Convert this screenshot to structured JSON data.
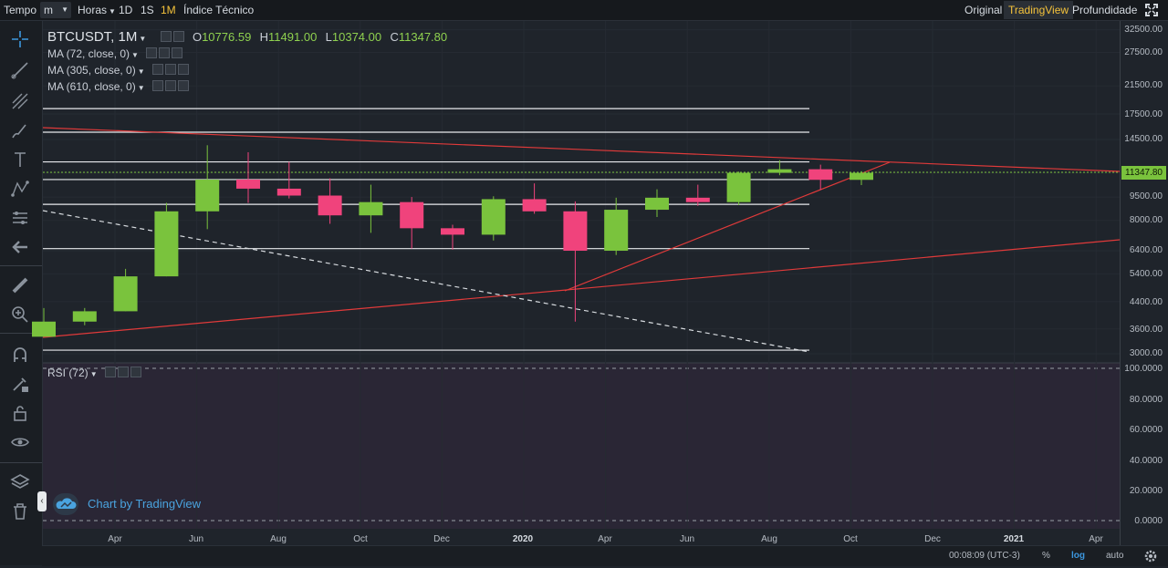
{
  "toolbar": {
    "tempo_label": "Tempo",
    "interval_value": "m",
    "hours_label": "Horas",
    "tf_1d": "1D",
    "tf_1s": "1S",
    "tf_1m": "1M",
    "indicator_label": "Índice Técnico",
    "view_original": "Original",
    "view_tradingview": "TradingView",
    "view_depth": "Profundidade",
    "active_view": "TradingView",
    "active_timeframe": "1M"
  },
  "tools": [
    "crosshair-icon",
    "trend-line-icon",
    "fib-icon",
    "brush-icon",
    "text-icon",
    "pattern-icon",
    "forecast-icon",
    "back-arrow-icon",
    "ruler-icon",
    "zoom-icon",
    "magnet-icon",
    "lock-draw-icon",
    "unlock-icon",
    "eye-icon",
    "layers-icon",
    "trash-icon"
  ],
  "legend": {
    "symbol": "BTCUSDT, 1M",
    "o_label": "O",
    "o_value": "10776.59",
    "h_label": "H",
    "h_value": "11491.00",
    "l_label": "L",
    "l_value": "10374.00",
    "c_label": "C",
    "c_value": "11347.80",
    "ma1": "MA (72, close, 0)",
    "ma2": "MA (305, close, 0)",
    "ma3": "MA (610, close, 0)",
    "rsi": "RSI (72)"
  },
  "price_axis": [
    "32500.00",
    "27500.00",
    "21500.00",
    "17500.00",
    "14500.00",
    "11347.80",
    "9500.00",
    "8000.00",
    "6400.00",
    "5400.00",
    "4400.00",
    "3600.00",
    "3000.00"
  ],
  "last_price": "11347.80",
  "rsi_axis": [
    "100.0000",
    "80.0000",
    "60.0000",
    "40.0000",
    "20.0000",
    "0.0000"
  ],
  "time_axis": [
    "Apr",
    "Jun",
    "Aug",
    "Oct",
    "Dec",
    "2020",
    "Apr",
    "Jun",
    "Aug",
    "Oct",
    "Dec",
    "2021",
    "Apr"
  ],
  "bottom": {
    "clock": "00:08:09 (UTC-3)",
    "percent": "%",
    "log": "log",
    "auto": "auto"
  },
  "watermark": "Chart by TradingView",
  "colors": {
    "up": "#7ac33d",
    "down": "#f0437c",
    "accent": "#f5c33b",
    "link": "#4aa3df"
  },
  "chart_data": {
    "type": "candlestick",
    "symbol": "BTCUSDT",
    "interval": "1M",
    "scale": "log",
    "candles": [
      {
        "month": "2019-02",
        "open": 3400,
        "high": 4200,
        "low": 3400,
        "close": 3800
      },
      {
        "month": "2019-03",
        "open": 3800,
        "high": 4200,
        "low": 3700,
        "close": 4100
      },
      {
        "month": "2019-04",
        "open": 4100,
        "high": 5600,
        "low": 4100,
        "close": 5300
      },
      {
        "month": "2019-05",
        "open": 5300,
        "high": 9100,
        "low": 5300,
        "close": 8550
      },
      {
        "month": "2019-06",
        "open": 8550,
        "high": 13900,
        "low": 7500,
        "close": 10800
      },
      {
        "month": "2019-07",
        "open": 10800,
        "high": 13200,
        "low": 9100,
        "close": 10100
      },
      {
        "month": "2019-08",
        "open": 10100,
        "high": 12300,
        "low": 9400,
        "close": 9600
      },
      {
        "month": "2019-09",
        "open": 9600,
        "high": 10900,
        "low": 7800,
        "close": 8300
      },
      {
        "month": "2019-10",
        "open": 8300,
        "high": 10400,
        "low": 7300,
        "close": 9150
      },
      {
        "month": "2019-11",
        "open": 9150,
        "high": 9500,
        "low": 6500,
        "close": 7550
      },
      {
        "month": "2019-12",
        "open": 7550,
        "high": 7750,
        "low": 6450,
        "close": 7200
      },
      {
        "month": "2020-01",
        "open": 7200,
        "high": 9550,
        "low": 6900,
        "close": 9350
      },
      {
        "month": "2020-02",
        "open": 9350,
        "high": 10500,
        "low": 8400,
        "close": 8550
      },
      {
        "month": "2020-03",
        "open": 8550,
        "high": 9200,
        "low": 3800,
        "close": 6400
      },
      {
        "month": "2020-04",
        "open": 6400,
        "high": 9450,
        "low": 6200,
        "close": 8650
      },
      {
        "month": "2020-05",
        "open": 8650,
        "high": 10050,
        "low": 8200,
        "close": 9450
      },
      {
        "month": "2020-06",
        "open": 9450,
        "high": 10400,
        "low": 8900,
        "close": 9150
      },
      {
        "month": "2020-07",
        "open": 9150,
        "high": 11450,
        "low": 8950,
        "close": 11350
      },
      {
        "month": "2020-08",
        "open": 11350,
        "high": 12450,
        "low": 11150,
        "close": 11650
      },
      {
        "month": "2020-09",
        "open": 11650,
        "high": 12050,
        "low": 10000,
        "close": 10776.59
      },
      {
        "month": "2020-10",
        "open": 10776.59,
        "high": 11491,
        "low": 10374,
        "close": 11347.8
      }
    ],
    "horizontal_levels": [
      3080,
      6500,
      9000,
      10800,
      12300,
      15300,
      18200
    ],
    "y_ticks": [
      3000,
      3600,
      4400,
      5400,
      6400,
      8000,
      9500,
      11347.8,
      14500,
      17500,
      21500,
      27500,
      32500
    ],
    "x_ticks": [
      "Apr",
      "Jun",
      "Aug",
      "Oct",
      "Dec",
      "2020",
      "Apr",
      "Jun",
      "Aug",
      "Oct",
      "Dec",
      "2021",
      "Apr"
    ],
    "rsi_range": [
      0,
      100
    ]
  }
}
